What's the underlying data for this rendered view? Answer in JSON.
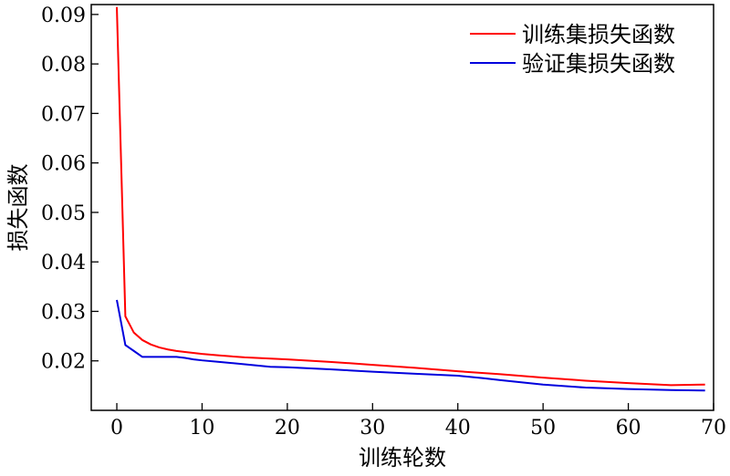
{
  "chart_data": {
    "type": "line",
    "title": "",
    "xlabel": "训练轮数",
    "ylabel": "损失函数",
    "xlim": [
      -3,
      70
    ],
    "ylim": [
      0.01,
      0.092
    ],
    "xticks": [
      0,
      10,
      20,
      30,
      40,
      50,
      60,
      70
    ],
    "yticks": [
      0.02,
      0.03,
      0.04,
      0.05,
      0.06,
      0.07,
      0.08,
      0.09
    ],
    "xtick_labels": [
      "0",
      "10",
      "20",
      "30",
      "40",
      "50",
      "60",
      "70"
    ],
    "ytick_labels": [
      "0.02",
      "0.03",
      "0.04",
      "0.05",
      "0.06",
      "0.07",
      "0.08",
      "0.09"
    ],
    "grid": false,
    "legend_position": "top-right",
    "series": [
      {
        "name": "训练集损失函数",
        "color": "#ff0000",
        "x": [
          0,
          1,
          2,
          3,
          4,
          5,
          6,
          7,
          8,
          10,
          12,
          15,
          20,
          25,
          30,
          35,
          40,
          45,
          50,
          55,
          60,
          65,
          69
        ],
        "y": [
          0.0915,
          0.029,
          0.0257,
          0.0242,
          0.0233,
          0.0227,
          0.0223,
          0.022,
          0.0218,
          0.0214,
          0.0211,
          0.0207,
          0.0203,
          0.0198,
          0.0192,
          0.0186,
          0.0179,
          0.0173,
          0.0166,
          0.016,
          0.0155,
          0.0151,
          0.0152
        ]
      },
      {
        "name": "验证集损失函数",
        "color": "#0000dd",
        "x": [
          0,
          1,
          2,
          3,
          4,
          5,
          6,
          7,
          8,
          9,
          10,
          12,
          15,
          18,
          20,
          25,
          30,
          35,
          40,
          43,
          45,
          50,
          55,
          60,
          65,
          69
        ],
        "y": [
          0.0323,
          0.0232,
          0.022,
          0.0208,
          0.0208,
          0.0208,
          0.0208,
          0.0208,
          0.0206,
          0.0203,
          0.0201,
          0.0198,
          0.0193,
          0.0188,
          0.0187,
          0.0183,
          0.0178,
          0.0174,
          0.017,
          0.0165,
          0.0161,
          0.0152,
          0.0146,
          0.0143,
          0.0141,
          0.014
        ]
      }
    ]
  }
}
